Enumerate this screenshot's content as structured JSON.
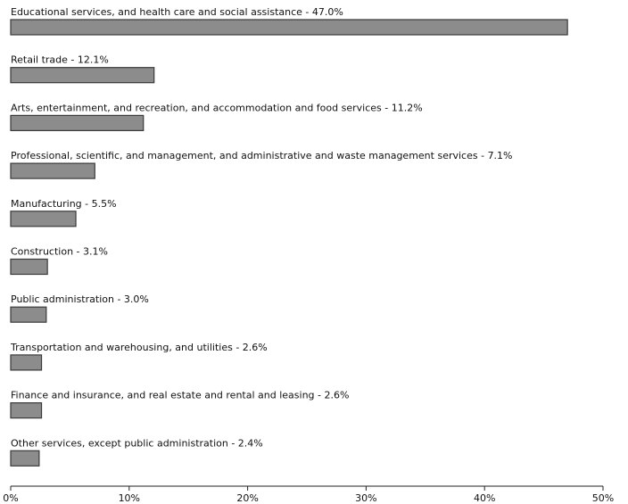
{
  "chart_data": {
    "type": "bar",
    "orientation": "horizontal",
    "categories": [
      "Educational services, and health care and social assistance",
      "Retail trade",
      "Arts, entertainment, and recreation, and accommodation and food services",
      "Professional, scientific, and management, and administrative and waste management services",
      "Manufacturing",
      "Construction",
      "Public administration",
      "Transportation and warehousing, and utilities",
      "Finance and insurance, and real estate and rental and leasing",
      "Other services, except public administration"
    ],
    "values": [
      47.0,
      12.1,
      11.2,
      7.1,
      5.5,
      3.1,
      3.0,
      2.6,
      2.6,
      2.4
    ],
    "labels": [
      "Educational services, and health care and social assistance - 47.0%",
      "Retail trade - 12.1%",
      "Arts, entertainment, and recreation, and accommodation and food services - 11.2%",
      "Professional, scientific, and management, and administrative and waste management services - 7.1%",
      "Manufacturing - 5.5%",
      "Construction - 3.1%",
      "Public administration - 3.0%",
      "Transportation and warehousing, and utilities - 2.6%",
      "Finance and insurance, and real estate and rental and leasing - 2.6%",
      "Other services, except public administration - 2.4%"
    ],
    "xlim": [
      0,
      50
    ],
    "xticks": [
      0,
      10,
      20,
      30,
      40,
      50
    ],
    "xtick_labels": [
      "0%",
      "10%",
      "20%",
      "30%",
      "40%",
      "50%"
    ],
    "title": "",
    "xlabel": "",
    "ylabel": "",
    "grid": false,
    "bar_color": "#8c8c8c",
    "bar_edge_color": "#3a3a3a"
  }
}
